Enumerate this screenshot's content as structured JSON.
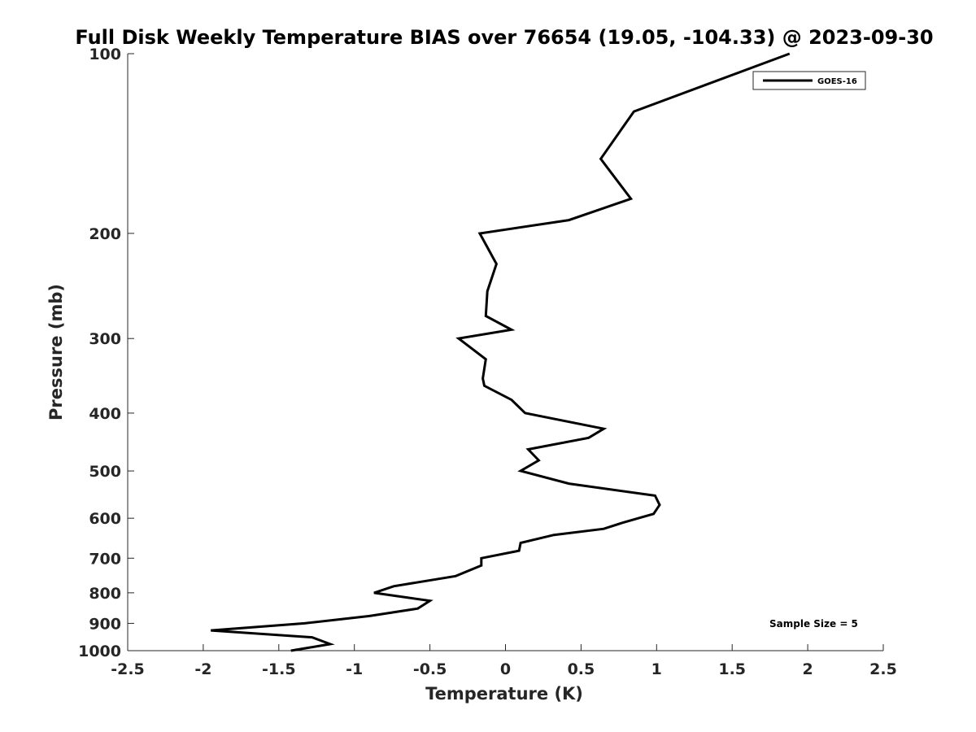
{
  "chart_data": {
    "type": "line",
    "title": "Full Disk Weekly Temperature BIAS over 76654 (19.05, -104.33) @ 2023-09-30",
    "xlabel": "Temperature (K)",
    "ylabel": "Pressure (mb)",
    "xlim": [
      -2.5,
      2.5
    ],
    "ylim": [
      100,
      1000
    ],
    "yscale": "log",
    "y_reversed": true,
    "x_ticks": [
      -2.5,
      -2,
      -1.5,
      -1,
      -0.5,
      0,
      0.5,
      1,
      1.5,
      2,
      2.5
    ],
    "x_tick_labels": [
      "-2.5",
      "-2",
      "-1.5",
      "-1",
      "-0.5",
      "0",
      "0.5",
      "1",
      "1.5",
      "2",
      "2.5"
    ],
    "y_ticks": [
      100,
      200,
      300,
      400,
      500,
      600,
      700,
      800,
      900,
      1000
    ],
    "y_tick_labels": [
      "100",
      "200",
      "300",
      "400",
      "500",
      "600",
      "700",
      "800",
      "900",
      "1000"
    ],
    "grid": false,
    "legend_position": "top-right",
    "annotation": "Sample Size = 5",
    "series": [
      {
        "name": "GOES-16",
        "color": "#000000",
        "points": [
          {
            "x": 1.88,
            "p": 100
          },
          {
            "x": 0.85,
            "p": 125
          },
          {
            "x": 0.63,
            "p": 150
          },
          {
            "x": 0.83,
            "p": 175
          },
          {
            "x": 0.42,
            "p": 190
          },
          {
            "x": -0.17,
            "p": 200
          },
          {
            "x": -0.06,
            "p": 225
          },
          {
            "x": -0.12,
            "p": 250
          },
          {
            "x": -0.13,
            "p": 275
          },
          {
            "x": 0.04,
            "p": 290
          },
          {
            "x": -0.31,
            "p": 300
          },
          {
            "x": -0.13,
            "p": 325
          },
          {
            "x": -0.15,
            "p": 350
          },
          {
            "x": -0.14,
            "p": 360
          },
          {
            "x": 0.04,
            "p": 380
          },
          {
            "x": 0.13,
            "p": 400
          },
          {
            "x": 0.65,
            "p": 425
          },
          {
            "x": 0.55,
            "p": 440
          },
          {
            "x": 0.15,
            "p": 460
          },
          {
            "x": 0.22,
            "p": 480
          },
          {
            "x": 0.1,
            "p": 500
          },
          {
            "x": 0.42,
            "p": 525
          },
          {
            "x": 0.99,
            "p": 550
          },
          {
            "x": 1.02,
            "p": 570
          },
          {
            "x": 0.98,
            "p": 590
          },
          {
            "x": 0.78,
            "p": 610
          },
          {
            "x": 0.65,
            "p": 625
          },
          {
            "x": 0.32,
            "p": 640
          },
          {
            "x": 0.1,
            "p": 660
          },
          {
            "x": 0.09,
            "p": 680
          },
          {
            "x": -0.16,
            "p": 700
          },
          {
            "x": -0.16,
            "p": 720
          },
          {
            "x": -0.33,
            "p": 750
          },
          {
            "x": -0.74,
            "p": 780
          },
          {
            "x": -0.87,
            "p": 800
          },
          {
            "x": -0.5,
            "p": 825
          },
          {
            "x": -0.58,
            "p": 850
          },
          {
            "x": -0.9,
            "p": 875
          },
          {
            "x": -1.33,
            "p": 900
          },
          {
            "x": -1.95,
            "p": 925
          },
          {
            "x": -1.28,
            "p": 950
          },
          {
            "x": -1.16,
            "p": 975
          },
          {
            "x": -1.42,
            "p": 1000
          }
        ]
      }
    ]
  }
}
